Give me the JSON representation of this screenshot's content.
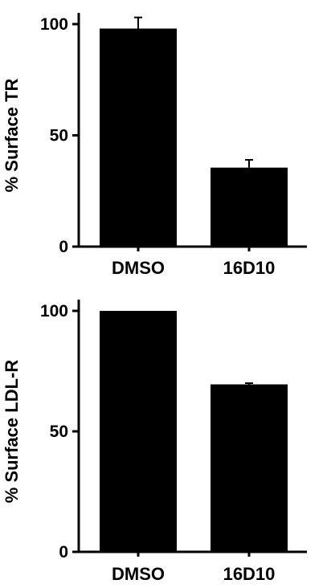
{
  "chart_data": [
    {
      "type": "bar",
      "title": "",
      "xlabel": "",
      "ylabel": "% Surface TR",
      "categories": [
        "DMSO",
        "16D10"
      ],
      "values": [
        98,
        35.5
      ],
      "errors": [
        5,
        3.5
      ],
      "ylim": [
        0,
        100
      ],
      "yticks": [
        "0",
        "50",
        "100"
      ],
      "grid": false,
      "bar_color": "#000000"
    },
    {
      "type": "bar",
      "title": "",
      "xlabel": "",
      "ylabel": "% Surface LDL-R",
      "categories": [
        "DMSO",
        "16D10"
      ],
      "values": [
        100,
        69.5
      ],
      "errors": [
        0,
        0.5
      ],
      "ylim": [
        0,
        100
      ],
      "yticks": [
        "0",
        "50",
        "100"
      ],
      "grid": false,
      "bar_color": "#000000"
    }
  ]
}
